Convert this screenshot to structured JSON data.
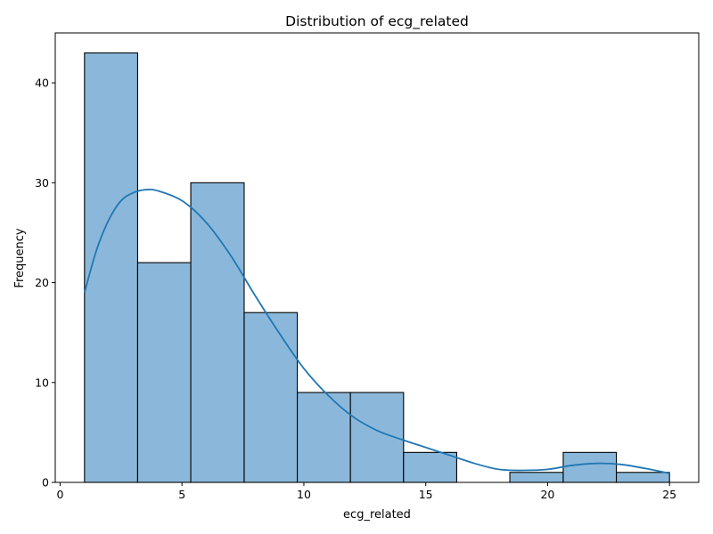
{
  "chart_data": {
    "type": "bar",
    "title": "Distribution of ecg_related",
    "xlabel": "ecg_related",
    "ylabel": "Frequency",
    "xlim": [
      -0.2,
      26.2
    ],
    "ylim": [
      0,
      45
    ],
    "x_ticks": [
      0,
      5,
      10,
      15,
      20,
      25
    ],
    "y_ticks": [
      0,
      10,
      20,
      30,
      40
    ],
    "bins": [
      {
        "start": 1.0,
        "end": 3.18,
        "count": 43
      },
      {
        "start": 3.18,
        "end": 5.36,
        "count": 22
      },
      {
        "start": 5.36,
        "end": 7.55,
        "count": 30
      },
      {
        "start": 7.55,
        "end": 9.73,
        "count": 17
      },
      {
        "start": 9.73,
        "end": 11.91,
        "count": 9
      },
      {
        "start": 11.91,
        "end": 14.09,
        "count": 9
      },
      {
        "start": 14.09,
        "end": 16.27,
        "count": 3
      },
      {
        "start": 16.27,
        "end": 18.45,
        "count": 0
      },
      {
        "start": 18.45,
        "end": 20.64,
        "count": 1
      },
      {
        "start": 20.64,
        "end": 22.82,
        "count": 3
      },
      {
        "start": 22.82,
        "end": 25.0,
        "count": 1
      }
    ],
    "kde": {
      "x": [
        1.0,
        1.5,
        2.0,
        2.5,
        3.0,
        3.5,
        4.0,
        5.0,
        6.0,
        7.0,
        8.0,
        9.0,
        10.0,
        11.0,
        12.0,
        13.0,
        14.0,
        15.0,
        16.0,
        17.0,
        18.0,
        19.0,
        20.0,
        21.0,
        22.0,
        23.0,
        24.0,
        25.0
      ],
      "y": [
        19.0,
        23.3,
        26.3,
        28.2,
        29.0,
        29.3,
        29.2,
        28.2,
        26.0,
        22.7,
        18.7,
        14.9,
        11.4,
        8.7,
        6.6,
        5.2,
        4.3,
        3.5,
        2.7,
        1.9,
        1.3,
        1.2,
        1.3,
        1.7,
        1.9,
        1.8,
        1.4,
        0.9
      ]
    },
    "grid": false,
    "colors": {
      "bar_fill": "#8bb8da",
      "bar_edge": "#000000",
      "kde_line": "#1f77b4"
    }
  }
}
